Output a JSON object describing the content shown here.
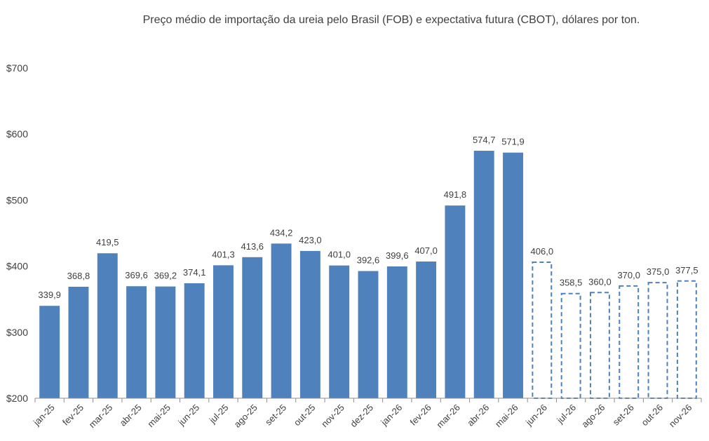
{
  "chart_data": {
    "type": "bar",
    "title": "Preço médio de importação da ureia pelo Brasil (FOB) e expectativa futura (CBOT), dólares por ton.",
    "xlabel": "",
    "ylabel": "",
    "ylim": [
      200,
      700
    ],
    "yticks": [
      200,
      300,
      400,
      500,
      600,
      700
    ],
    "ytick_labels": [
      "$200",
      "$300",
      "$400",
      "$500",
      "$600",
      "$700"
    ],
    "categories": [
      "jan-25",
      "fev-25",
      "mar-25",
      "abr-25",
      "mai-25",
      "jun-25",
      "jul-25",
      "ago-25",
      "set-25",
      "out-25",
      "nov-25",
      "dez-25",
      "jan-26",
      "fev-26",
      "mar-26",
      "abr-26",
      "mai-26",
      "jun-26",
      "jul-26",
      "ago-26",
      "set-26",
      "out-26",
      "nov-26"
    ],
    "values": [
      339.9,
      368.8,
      419.5,
      369.6,
      369.2,
      374.1,
      401.3,
      413.6,
      434.2,
      423.0,
      401.0,
      392.6,
      399.6,
      407.0,
      491.8,
      574.7,
      571.9,
      406.0,
      358.5,
      360.0,
      370.0,
      375.0,
      377.5
    ],
    "value_labels": [
      "339,9",
      "368,8",
      "419,5",
      "369,6",
      "369,2",
      "374,1",
      "401,3",
      "413,6",
      "434,2",
      "423,0",
      "401,0",
      "392,6",
      "399,6",
      "407,0",
      "491,8",
      "574,7",
      "571,9",
      "406,0",
      "358,5",
      "360,0",
      "370,0",
      "375,0",
      "377,5"
    ],
    "bar_style": [
      "solid",
      "solid",
      "solid",
      "solid",
      "solid",
      "solid",
      "solid",
      "solid",
      "solid",
      "solid",
      "solid",
      "solid",
      "solid",
      "solid",
      "solid",
      "solid",
      "solid",
      "dashed",
      "dashed",
      "dashed",
      "dashed",
      "dashed",
      "dashed"
    ],
    "grid": false,
    "legend": "none",
    "colors": {
      "bar": "#4f81bd",
      "text": "#404040"
    }
  }
}
